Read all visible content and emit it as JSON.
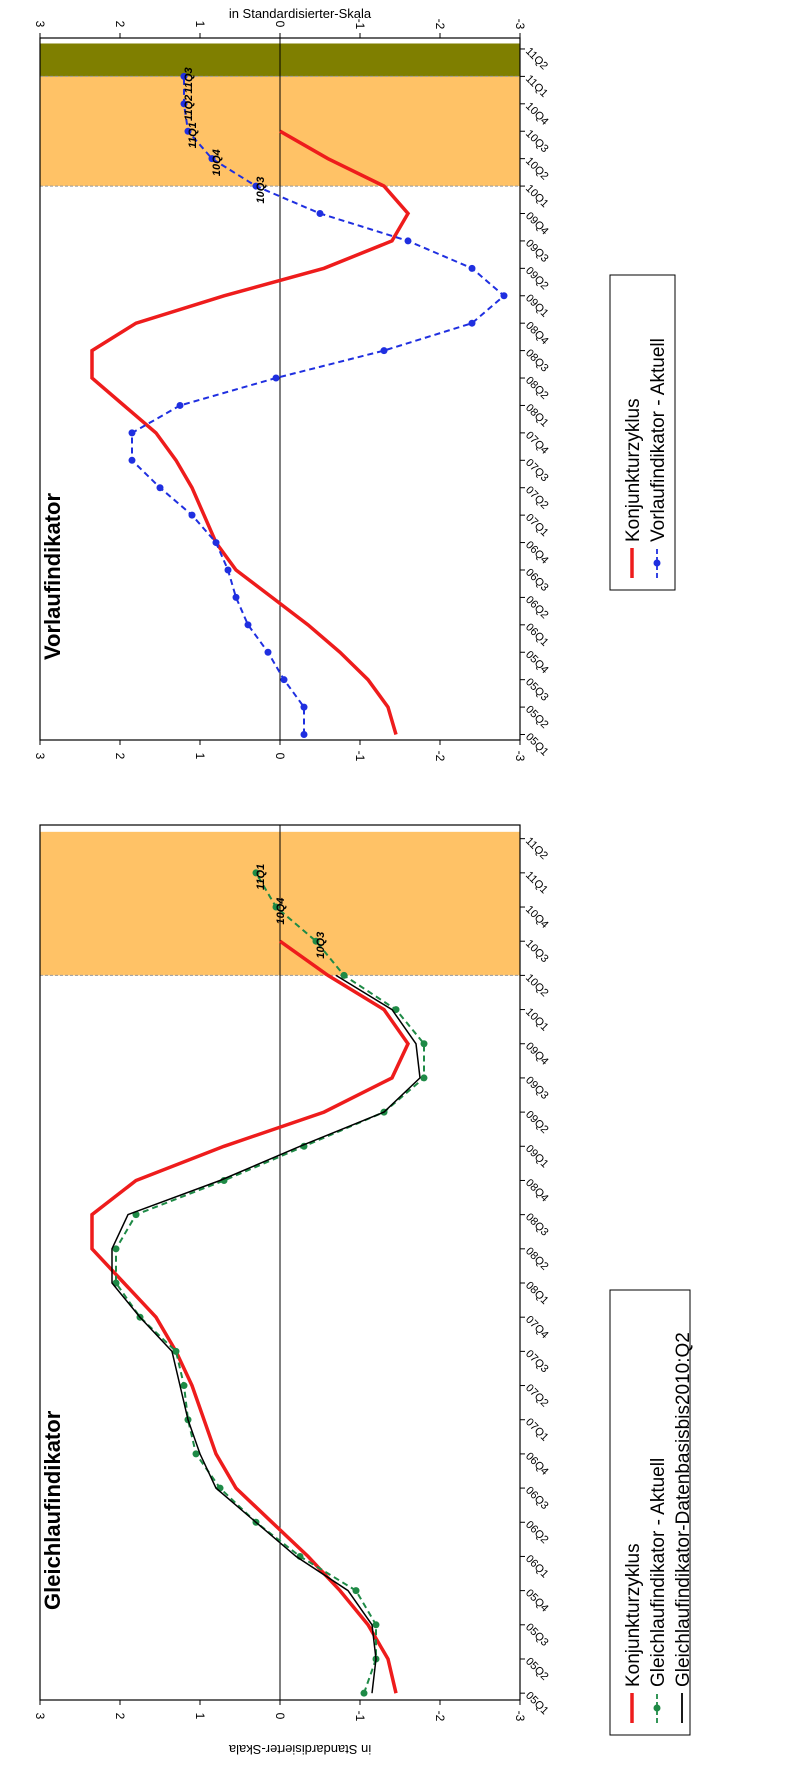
{
  "y_axis_label": "in Standardisierter-Skala",
  "colors": {
    "konjunktur": "#ee1c1c",
    "vorlauf": "#1f2fe0",
    "gleichlauf_aktuell": "#1e8a46",
    "gleichlauf_basis": "#000000",
    "forecast_band": "#ffc266",
    "nowcast_band": "#7f7f00"
  },
  "chart_data": [
    {
      "type": "line",
      "title": "Gleichlaufindikator",
      "ylabel": "in Standardisierter-Skala",
      "orientation": "rotated-90-clockwise",
      "ylim": [
        -3,
        3
      ],
      "yticks": [
        "3",
        "2",
        "1",
        "0",
        "-1",
        "-2",
        "-3"
      ],
      "categories": [
        "05Q1",
        "05Q2",
        "05Q3",
        "05Q4",
        "06Q1",
        "06Q2",
        "06Q3",
        "06Q4",
        "07Q1",
        "07Q2",
        "07Q3",
        "07Q4",
        "08Q1",
        "08Q2",
        "08Q3",
        "08Q4",
        "09Q1",
        "09Q2",
        "09Q3",
        "09Q4",
        "10Q1",
        "10Q2",
        "10Q3",
        "10Q4",
        "11Q1",
        "11Q2"
      ],
      "shaded_regions": [
        {
          "from": "10Q2",
          "to": "11Q2",
          "color": "#ffc266"
        }
      ],
      "series": [
        {
          "name": "Konjunkturzyklus",
          "style": "solid",
          "color": "#ee1c1c",
          "values": [
            -1.45,
            -1.35,
            -1.1,
            -0.75,
            -0.35,
            0.1,
            0.55,
            0.8,
            0.95,
            1.1,
            1.3,
            1.55,
            1.95,
            2.35,
            2.35,
            1.8,
            0.7,
            -0.55,
            -1.4,
            -1.6,
            -1.3,
            -0.6,
            0.0,
            null,
            null,
            null
          ]
        },
        {
          "name": "Gleichlaufindikator - Aktuell",
          "style": "dashed-markers",
          "color": "#1e8a46",
          "values": [
            -1.05,
            -1.2,
            -1.2,
            -0.95,
            -0.25,
            0.3,
            0.75,
            1.05,
            1.15,
            1.2,
            1.3,
            1.75,
            2.05,
            2.05,
            1.8,
            0.7,
            -0.3,
            -1.3,
            -1.8,
            -1.8,
            -1.45,
            -0.8,
            -0.45,
            0.05,
            0.3,
            null
          ]
        },
        {
          "name": "Gleichlaufindikator-Datenbasisbis2010:Q2",
          "style": "solid-thin",
          "color": "#000000",
          "values": [
            -1.15,
            -1.2,
            -1.15,
            -0.85,
            -0.2,
            0.3,
            0.8,
            1.0,
            1.15,
            1.25,
            1.35,
            1.75,
            2.1,
            2.1,
            1.9,
            0.75,
            -0.25,
            -1.3,
            -1.75,
            -1.7,
            -1.4,
            -0.7,
            null,
            null,
            null,
            null
          ]
        }
      ],
      "annotations": [
        {
          "label": "10Q3",
          "category": "10Q3",
          "value": -0.45
        },
        {
          "label": "10Q4",
          "category": "10Q4",
          "value": 0.05
        },
        {
          "label": "11Q1",
          "category": "11Q1",
          "value": 0.3
        }
      ],
      "legend": [
        "Konjunkturzyklus",
        "Gleichlaufindikator - Aktuell",
        "Gleichlaufindikator-Datenbasisbis2010:Q2"
      ]
    },
    {
      "type": "line",
      "title": "Vorlaufindikator",
      "ylabel": "in Standardisierter-Skala",
      "orientation": "rotated-90-clockwise",
      "ylim": [
        -3,
        3
      ],
      "yticks": [
        "3",
        "2",
        "1",
        "0",
        "-1",
        "-2",
        "-3"
      ],
      "categories": [
        "05Q1",
        "05Q2",
        "05Q3",
        "05Q4",
        "06Q1",
        "06Q2",
        "06Q3",
        "06Q4",
        "07Q1",
        "07Q2",
        "07Q3",
        "07Q4",
        "08Q1",
        "08Q2",
        "08Q3",
        "08Q4",
        "09Q1",
        "09Q2",
        "09Q3",
        "09Q4",
        "10Q1",
        "10Q2",
        "10Q3",
        "10Q4",
        "11Q1",
        "11Q2"
      ],
      "shaded_regions": [
        {
          "from": "10Q1",
          "to": "11Q1",
          "color": "#ffc266"
        },
        {
          "from": "11Q1",
          "to": "11Q2",
          "color": "#7f7f00"
        }
      ],
      "series": [
        {
          "name": "Konjunkturzyklus",
          "style": "solid",
          "color": "#ee1c1c",
          "values": [
            -1.45,
            -1.35,
            -1.1,
            -0.75,
            -0.35,
            0.1,
            0.55,
            0.8,
            0.95,
            1.1,
            1.3,
            1.55,
            1.95,
            2.35,
            2.35,
            1.8,
            0.7,
            -0.55,
            -1.4,
            -1.6,
            -1.3,
            -0.6,
            0.0,
            null,
            null,
            null
          ]
        },
        {
          "name": "Vorlaufindikator - Aktuell",
          "style": "dashed-markers",
          "color": "#1f2fe0",
          "values": [
            -0.3,
            -0.3,
            -0.05,
            0.15,
            0.4,
            0.55,
            0.65,
            0.8,
            1.1,
            1.5,
            1.85,
            1.85,
            1.25,
            0.05,
            -1.3,
            -2.4,
            -2.8,
            -2.4,
            -1.6,
            -0.5,
            0.3,
            0.85,
            1.15,
            1.2,
            1.2,
            null
          ]
        }
      ],
      "annotations": [
        {
          "label": "10Q3",
          "category": "10Q1",
          "value": 0.3
        },
        {
          "label": "10Q4",
          "category": "10Q2",
          "value": 0.85
        },
        {
          "label": "11Q1",
          "category": "10Q3",
          "value": 1.15
        },
        {
          "label": "11Q2",
          "category": "10Q4",
          "value": 1.2
        },
        {
          "label": "11Q3",
          "category": "11Q1",
          "value": 1.2
        }
      ],
      "legend": [
        "Konjunkturzyklus",
        "Vorlaufindikator - Aktuell"
      ]
    }
  ]
}
